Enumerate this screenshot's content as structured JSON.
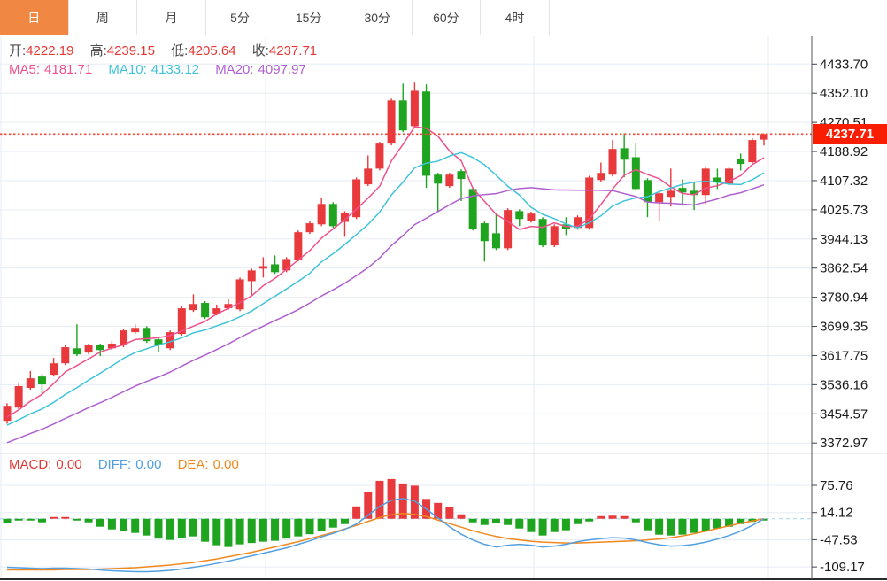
{
  "colors": {
    "accent_orange": "#F08742",
    "up_red": "#E8393C",
    "down_green": "#1FA41F",
    "ma5_pink": "#F0508C",
    "ma10_cyan": "#3FC3DB",
    "ma20_purple": "#AF5FD0",
    "diff_blue": "#52A0E0",
    "dea_orange": "#F0881E",
    "price_line_red": "#F5493D",
    "badge_red": "#F91D02",
    "grid": "#E6EDF5",
    "axis_border": "#555555",
    "value_red": "#E53835"
  },
  "tabs": {
    "items": [
      {
        "name": "tab-daily",
        "label": "日",
        "active": true
      },
      {
        "name": "tab-weekly",
        "label": "周",
        "active": false
      },
      {
        "name": "tab-monthly",
        "label": "月",
        "active": false
      },
      {
        "name": "tab-5min",
        "label": "5分",
        "active": false
      },
      {
        "name": "tab-15min",
        "label": "15分",
        "active": false
      },
      {
        "name": "tab-30min",
        "label": "30分",
        "active": false
      },
      {
        "name": "tab-60min",
        "label": "60分",
        "active": false
      },
      {
        "name": "tab-4hour",
        "label": "4时",
        "active": false
      }
    ]
  },
  "main_overlay": {
    "open_label": "开:",
    "open": "4222.19",
    "high_label": "高:",
    "high": "4239.15",
    "low_label": "低:",
    "low": "4205.64",
    "close_label": "收:",
    "close": "4237.71",
    "ma5_label": "MA5:",
    "ma5": "4181.71",
    "ma10_label": "MA10:",
    "ma10": "4133.12",
    "ma20_label": "MA20:",
    "ma20": "4097.97"
  },
  "macd_overlay": {
    "macd_label": "MACD:",
    "macd": "0.00",
    "diff_label": "DIFF:",
    "diff": "0.00",
    "dea_label": "DEA:",
    "dea": "0.00"
  },
  "price_axis": {
    "current_price_label": "4237.71"
  },
  "chart_data": {
    "type": "candlestick",
    "title": "Daily candlestick chart with MA5/MA10/MA20 overlays and MACD sub-panel",
    "legend_position": "top-left overlay",
    "grid": true,
    "panels": [
      {
        "name": "price",
        "type": "candlestick",
        "y_tick_labels": [
          "4433.70",
          "4352.10",
          "4270.51",
          "4188.92",
          "4107.32",
          "4025.73",
          "3944.13",
          "3862.54",
          "3780.94",
          "3699.35",
          "3617.75",
          "3536.16",
          "3454.57",
          "3372.97"
        ],
        "y_ticks": [
          4433.7,
          4352.1,
          4270.51,
          4188.92,
          4107.32,
          4025.73,
          3944.13,
          3862.54,
          3780.94,
          3699.35,
          3617.75,
          3536.16,
          3454.57,
          3372.97
        ],
        "ylim": [
          3372.97,
          4433.7
        ],
        "current_price": 4237.71,
        "ohlc_order": "[open,high,low,close]",
        "candles": [
          [
            3435,
            3484,
            3427,
            3477
          ],
          [
            3472,
            3539,
            3467,
            3532
          ],
          [
            3527,
            3574,
            3522,
            3554
          ],
          [
            3559,
            3566,
            3509,
            3537
          ],
          [
            3564,
            3611,
            3559,
            3596
          ],
          [
            3596,
            3646,
            3591,
            3641
          ],
          [
            3638,
            3705,
            3616,
            3621
          ],
          [
            3626,
            3651,
            3621,
            3646
          ],
          [
            3646,
            3651,
            3616,
            3633
          ],
          [
            3638,
            3658,
            3633,
            3651
          ],
          [
            3646,
            3693,
            3641,
            3688
          ],
          [
            3683,
            3705,
            3678,
            3695
          ],
          [
            3695,
            3700,
            3653,
            3658
          ],
          [
            3663,
            3668,
            3628,
            3646
          ],
          [
            3638,
            3688,
            3633,
            3683
          ],
          [
            3678,
            3755,
            3673,
            3750
          ],
          [
            3745,
            3789,
            3740,
            3762
          ],
          [
            3765,
            3770,
            3720,
            3725
          ],
          [
            3735,
            3760,
            3730,
            3750
          ],
          [
            3750,
            3775,
            3745,
            3762
          ],
          [
            3747,
            3836,
            3742,
            3831
          ],
          [
            3826,
            3861,
            3787,
            3856
          ],
          [
            3861,
            3893,
            3836,
            3868
          ],
          [
            3873,
            3898,
            3846,
            3851
          ],
          [
            3856,
            3893,
            3851,
            3888
          ],
          [
            3886,
            3968,
            3881,
            3963
          ],
          [
            3963,
            3993,
            3958,
            3988
          ],
          [
            3985,
            4059,
            3980,
            4042
          ],
          [
            4042,
            4047,
            3975,
            3980
          ],
          [
            3992,
            4022,
            3950,
            4017
          ],
          [
            4005,
            4116,
            4000,
            4111
          ],
          [
            4097,
            4178,
            4092,
            4141
          ],
          [
            4141,
            4216,
            4136,
            4211
          ],
          [
            4211,
            4337,
            4206,
            4332
          ],
          [
            4332,
            4379,
            4243,
            4248
          ],
          [
            4260,
            4382,
            4255,
            4359
          ],
          [
            4357,
            4377,
            4087,
            4121
          ],
          [
            4124,
            4129,
            4022,
            4099
          ],
          [
            4092,
            4129,
            4087,
            4124
          ],
          [
            4134,
            4139,
            4050,
            4112
          ],
          [
            4084,
            4089,
            3968,
            3973
          ],
          [
            3988,
            3993,
            3881,
            3938
          ],
          [
            3960,
            4017,
            3913,
            3918
          ],
          [
            3918,
            4030,
            3913,
            4025
          ],
          [
            4022,
            4027,
            3980,
            4000
          ],
          [
            3995,
            4020,
            3990,
            4015
          ],
          [
            4000,
            4005,
            3921,
            3926
          ],
          [
            3926,
            3985,
            3921,
            3980
          ],
          [
            3985,
            4005,
            3955,
            3973
          ],
          [
            3975,
            4010,
            3970,
            4005
          ],
          [
            3975,
            4121,
            3970,
            4116
          ],
          [
            4109,
            4158,
            4104,
            4129
          ],
          [
            4124,
            4221,
            4119,
            4196
          ],
          [
            4198,
            4240,
            4117,
            4166
          ],
          [
            4173,
            4211,
            4079,
            4084
          ],
          [
            4109,
            4114,
            4005,
            4047
          ],
          [
            4047,
            4079,
            3993,
            4072
          ],
          [
            4062,
            4141,
            4035,
            4079
          ],
          [
            4087,
            4111,
            4037,
            4074
          ],
          [
            4079,
            4104,
            4025,
            4067
          ],
          [
            4067,
            4146,
            4042,
            4141
          ],
          [
            4116,
            4141,
            4084,
            4104
          ],
          [
            4099,
            4146,
            4094,
            4141
          ],
          [
            4169,
            4183,
            4136,
            4154
          ],
          [
            4159,
            4226,
            4154,
            4221
          ],
          [
            4222.19,
            4239.15,
            4205.64,
            4237.71
          ]
        ],
        "ma_periods": [
          5,
          10,
          20
        ],
        "ma_seed_closes": [
          3270,
          3280,
          3290,
          3300,
          3310,
          3320,
          3330,
          3340,
          3350,
          3360,
          3370,
          3380,
          3390,
          3400,
          3410,
          3420,
          3430,
          3435,
          3440,
          3445
        ]
      },
      {
        "name": "macd",
        "type": "macd",
        "y_tick_labels": [
          "75.76",
          "14.12",
          "-47.53",
          "-109.17"
        ],
        "y_ticks": [
          75.76,
          14.12,
          -47.53,
          -109.17
        ],
        "histogram": [
          -10,
          -4,
          -4,
          -8,
          3,
          3,
          -4,
          -8,
          -18,
          -24,
          -28,
          -32,
          -38,
          -45,
          -48,
          -44,
          -40,
          -52,
          -60,
          -64,
          -58,
          -55,
          -52,
          -50,
          -45,
          -40,
          -35,
          -28,
          -20,
          -12,
          28,
          60,
          86,
          90,
          80,
          75,
          45,
          36,
          26,
          10,
          -8,
          -14,
          -10,
          -14,
          -22,
          -30,
          -38,
          -30,
          -26,
          -12,
          -6,
          6,
          7,
          6,
          -8,
          -26,
          -36,
          -38,
          -36,
          -32,
          -28,
          -22,
          -18,
          -12,
          -7,
          -2
        ],
        "diff": [
          -110,
          -111,
          -112,
          -113,
          -112,
          -112,
          -113,
          -114,
          -116,
          -118,
          -119,
          -120,
          -120,
          -119,
          -117,
          -114,
          -110,
          -106,
          -101,
          -96,
          -90,
          -84,
          -78,
          -72,
          -66,
          -58,
          -50,
          -41,
          -33,
          -24,
          -12,
          8,
          28,
          42,
          46,
          40,
          22,
          2,
          -18,
          -35,
          -48,
          -58,
          -64,
          -60,
          -58,
          -60,
          -64,
          -62,
          -58,
          -52,
          -48,
          -45,
          -43,
          -44,
          -48,
          -54,
          -59,
          -62,
          -61,
          -58,
          -53,
          -46,
          -38,
          -28,
          -15,
          0
        ],
        "dea": [
          -116,
          -116,
          -116,
          -116,
          -116,
          -115,
          -115,
          -115,
          -114,
          -113,
          -112,
          -111,
          -109,
          -107,
          -105,
          -102,
          -99,
          -95,
          -91,
          -86,
          -81,
          -76,
          -70,
          -64,
          -58,
          -52,
          -45,
          -38,
          -31,
          -23,
          -15,
          -6,
          3,
          9,
          12,
          10,
          5,
          -3,
          -11,
          -19,
          -27,
          -34,
          -40,
          -45,
          -48,
          -51,
          -53,
          -54,
          -55,
          -55,
          -54,
          -53,
          -52,
          -51,
          -50,
          -48,
          -46,
          -43,
          -39,
          -34,
          -28,
          -22,
          -16,
          -10,
          -5,
          0
        ]
      }
    ]
  }
}
